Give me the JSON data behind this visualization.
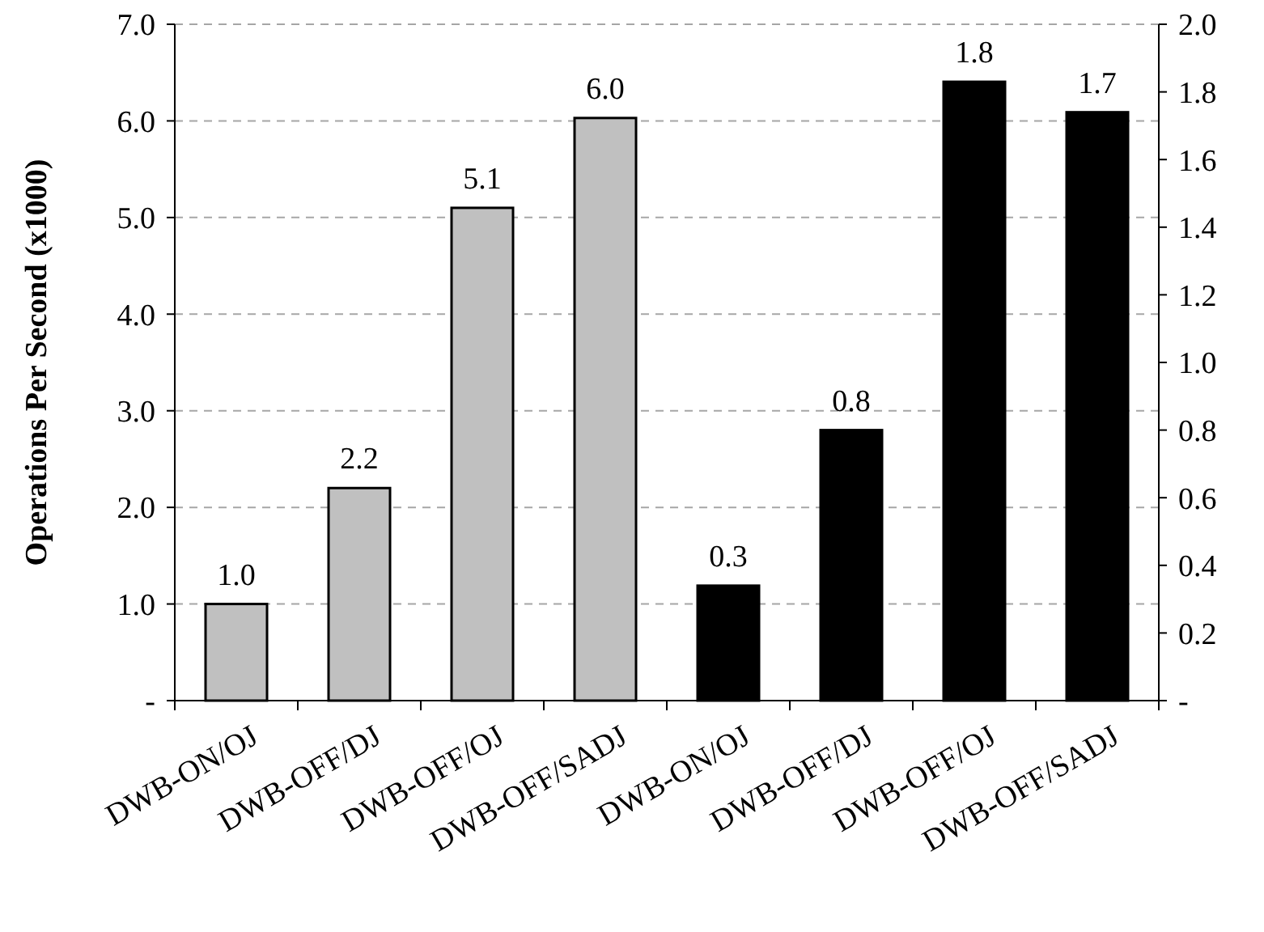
{
  "chart_data": {
    "type": "bar",
    "ylabel": "Operations Per Second (x1000)",
    "categories": [
      "DWB-ON/OJ",
      "DWB-OFF/DJ",
      "DWB-OFF/OJ",
      "DWB-OFF/SADJ",
      "DWB-ON/OJ",
      "DWB-OFF/DJ",
      "DWB-OFF/OJ",
      "DWB-OFF/SADJ"
    ],
    "series": [
      {
        "color": "#c0c0c0",
        "values": [
          1.0,
          2.2,
          5.1,
          6.03,
          null,
          null,
          null,
          null
        ],
        "value_labels": [
          "1.0",
          "2.2",
          "5.1",
          "6.0",
          null,
          null,
          null,
          null
        ]
      },
      {
        "color": "#000000",
        "axis": "y2",
        "values": [
          null,
          null,
          null,
          null,
          0.34,
          0.8,
          1.83,
          1.74
        ],
        "value_labels": [
          null,
          null,
          null,
          null,
          "0.3",
          "0.8",
          "1.8",
          "1.7"
        ]
      }
    ],
    "ylim": [
      0,
      7
    ],
    "yticks": [
      {
        "value": 0,
        "label": "-"
      },
      {
        "value": 1,
        "label": "1.0"
      },
      {
        "value": 2,
        "label": "2.0"
      },
      {
        "value": 3,
        "label": "3.0"
      },
      {
        "value": 4,
        "label": "4.0"
      },
      {
        "value": 5,
        "label": "5.0"
      },
      {
        "value": 6,
        "label": "6.0"
      },
      {
        "value": 7,
        "label": "7.0"
      }
    ],
    "y2lim": [
      0,
      2
    ],
    "y2ticks": [
      {
        "value": 0,
        "label": "-"
      },
      {
        "value": 0.2,
        "label": "0.2"
      },
      {
        "value": 0.4,
        "label": "0.4"
      },
      {
        "value": 0.6,
        "label": "0.6"
      },
      {
        "value": 0.8,
        "label": "0.8"
      },
      {
        "value": 1,
        "label": "1.0"
      },
      {
        "value": 1.2,
        "label": "1.2"
      },
      {
        "value": 1.4,
        "label": "1.4"
      },
      {
        "value": 1.6,
        "label": "1.6"
      },
      {
        "value": 1.8,
        "label": "1.8"
      },
      {
        "value": 2,
        "label": "2.0"
      }
    ],
    "grid": "y"
  }
}
